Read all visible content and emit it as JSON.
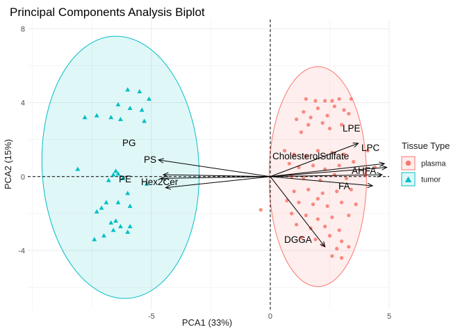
{
  "chart_data": {
    "type": "scatter",
    "title": "Principal Components Analysis Biplot",
    "xlabel": "PCA1 (33%)",
    "ylabel": "PCA2 (15%)",
    "xlim": [
      -10.2,
      5.0
    ],
    "ylim": [
      -7.2,
      8.5
    ],
    "x_ticks": [
      -5,
      0,
      5
    ],
    "y_ticks": [
      -4,
      0,
      4,
      8
    ],
    "grid": true,
    "legend": {
      "title": "Tissue Type",
      "position": "right",
      "entries": [
        {
          "label": "plasma",
          "color": "#F8766D",
          "shape": "circle"
        },
        {
          "label": "tumor",
          "color": "#00BFC4",
          "shape": "triangle"
        }
      ]
    },
    "series": [
      {
        "name": "plasma",
        "color": "#F8766D",
        "shape": "circle",
        "points": [
          [
            1.5,
            4.2
          ],
          [
            1.9,
            4.1
          ],
          [
            2.3,
            4.1
          ],
          [
            2.6,
            4.1
          ],
          [
            2.9,
            4.2
          ],
          [
            3.4,
            4.2
          ],
          [
            1.4,
            3.5
          ],
          [
            2.0,
            3.7
          ],
          [
            2.7,
            3.8
          ],
          [
            3.1,
            3.6
          ],
          [
            1.1,
            3.1
          ],
          [
            1.7,
            3.2
          ],
          [
            2.4,
            3.3
          ],
          [
            3.3,
            3.4
          ],
          [
            1.6,
            2.8
          ],
          [
            2.2,
            2.9
          ],
          [
            3.0,
            2.8
          ],
          [
            2.5,
            2.6
          ],
          [
            1.3,
            2.4
          ],
          [
            0.6,
            1.4
          ],
          [
            1.0,
            1.2
          ],
          [
            1.5,
            1.1
          ],
          [
            2.0,
            1.4
          ],
          [
            2.6,
            1.3
          ],
          [
            3.1,
            1.2
          ],
          [
            4.1,
            1.4
          ],
          [
            0.8,
            0.7
          ],
          [
            1.2,
            0.5
          ],
          [
            1.8,
            0.6
          ],
          [
            2.3,
            0.4
          ],
          [
            2.9,
            0.6
          ],
          [
            3.5,
            0.8
          ],
          [
            4.4,
            0.5
          ],
          [
            0.9,
            0.0
          ],
          [
            1.4,
            -0.1
          ],
          [
            2.1,
            -0.2
          ],
          [
            2.7,
            0.1
          ],
          [
            3.2,
            -0.1
          ],
          [
            4.0,
            0.1
          ],
          [
            1.0,
            -0.8
          ],
          [
            1.6,
            -0.7
          ],
          [
            2.2,
            -0.9
          ],
          [
            2.8,
            -0.8
          ],
          [
            3.4,
            -0.7
          ],
          [
            0.7,
            -1.3
          ],
          [
            1.2,
            -1.4
          ],
          [
            1.8,
            -1.5
          ],
          [
            2.4,
            -1.6
          ],
          [
            3.0,
            -1.4
          ],
          [
            3.6,
            -1.5
          ],
          [
            0.9,
            -2.0
          ],
          [
            1.5,
            -2.1
          ],
          [
            2.0,
            -2.3
          ],
          [
            2.6,
            -2.2
          ],
          [
            3.3,
            -2.1
          ],
          [
            1.1,
            -2.6
          ],
          [
            1.7,
            -2.8
          ],
          [
            2.3,
            -2.7
          ],
          [
            2.9,
            -2.9
          ],
          [
            1.3,
            -3.3
          ],
          [
            1.9,
            -3.4
          ],
          [
            2.5,
            -3.2
          ],
          [
            3.0,
            -3.5
          ],
          [
            2.2,
            -3.7
          ],
          [
            2.8,
            -3.9
          ],
          [
            3.3,
            -3.8
          ],
          [
            2.6,
            -4.3
          ],
          [
            3.0,
            -4.4
          ],
          [
            -0.4,
            -1.8
          ],
          [
            2.0,
            -1.2
          ]
        ],
        "ellipse": {
          "cx": 2.0,
          "cy": 0.0,
          "rx": 2.05,
          "ry": 5.95,
          "angle_deg": 0
        }
      },
      {
        "name": "tumor",
        "color": "#00BFC4",
        "shape": "triangle",
        "points": [
          [
            -6.0,
            4.7
          ],
          [
            -5.5,
            4.6
          ],
          [
            -5.1,
            4.2
          ],
          [
            -6.4,
            3.9
          ],
          [
            -5.9,
            3.7
          ],
          [
            -5.4,
            3.6
          ],
          [
            -7.3,
            3.3
          ],
          [
            -6.7,
            3.2
          ],
          [
            -6.3,
            3.1
          ],
          [
            -7.8,
            3.2
          ],
          [
            -5.3,
            3.0
          ],
          [
            -6.5,
            0.3
          ],
          [
            -6.4,
            0.15
          ],
          [
            -6.6,
            0.1
          ],
          [
            -8.1,
            0.4
          ],
          [
            -6.8,
            -0.2
          ],
          [
            -6.2,
            -0.1
          ],
          [
            -5.2,
            -0.4
          ],
          [
            -6.0,
            -0.9
          ],
          [
            -6.9,
            -1.4
          ],
          [
            -6.4,
            -1.4
          ],
          [
            -5.9,
            -1.6
          ],
          [
            -7.1,
            -1.7
          ],
          [
            -7.3,
            -1.9
          ],
          [
            -6.5,
            -2.4
          ],
          [
            -6.7,
            -2.5
          ],
          [
            -6.3,
            -2.7
          ],
          [
            -5.9,
            -2.7
          ],
          [
            -6.6,
            -2.9
          ],
          [
            -6.0,
            -3.0
          ],
          [
            -7.0,
            -3.2
          ],
          [
            -7.4,
            -3.4
          ]
        ],
        "ellipse": {
          "cx": -6.3,
          "cy": 0.5,
          "rx": 3.3,
          "ry": 7.1,
          "angle_deg": -3
        }
      }
    ],
    "loadings": [
      {
        "label": "LPE",
        "x": 3.7,
        "y": 1.8
      },
      {
        "label": "LPC",
        "x": 4.8,
        "y": 0.7
      },
      {
        "label": "CholesterolSulfate",
        "x": 4.9,
        "y": 0.5
      },
      {
        "label": "AHFA",
        "x": 4.7,
        "y": 0.1
      },
      {
        "label": "FA",
        "x": 4.3,
        "y": -0.5
      },
      {
        "label": "DGGA",
        "x": 2.3,
        "y": -3.8
      },
      {
        "label": "PG",
        "x": -4.7,
        "y": 0.9
      },
      {
        "label": "PS",
        "x": -4.5,
        "y": 0.1
      },
      {
        "label": "PE",
        "x": -4.6,
        "y": -0.1
      },
      {
        "label": "Hex2Cer",
        "x": -4.4,
        "y": -0.6
      }
    ]
  }
}
